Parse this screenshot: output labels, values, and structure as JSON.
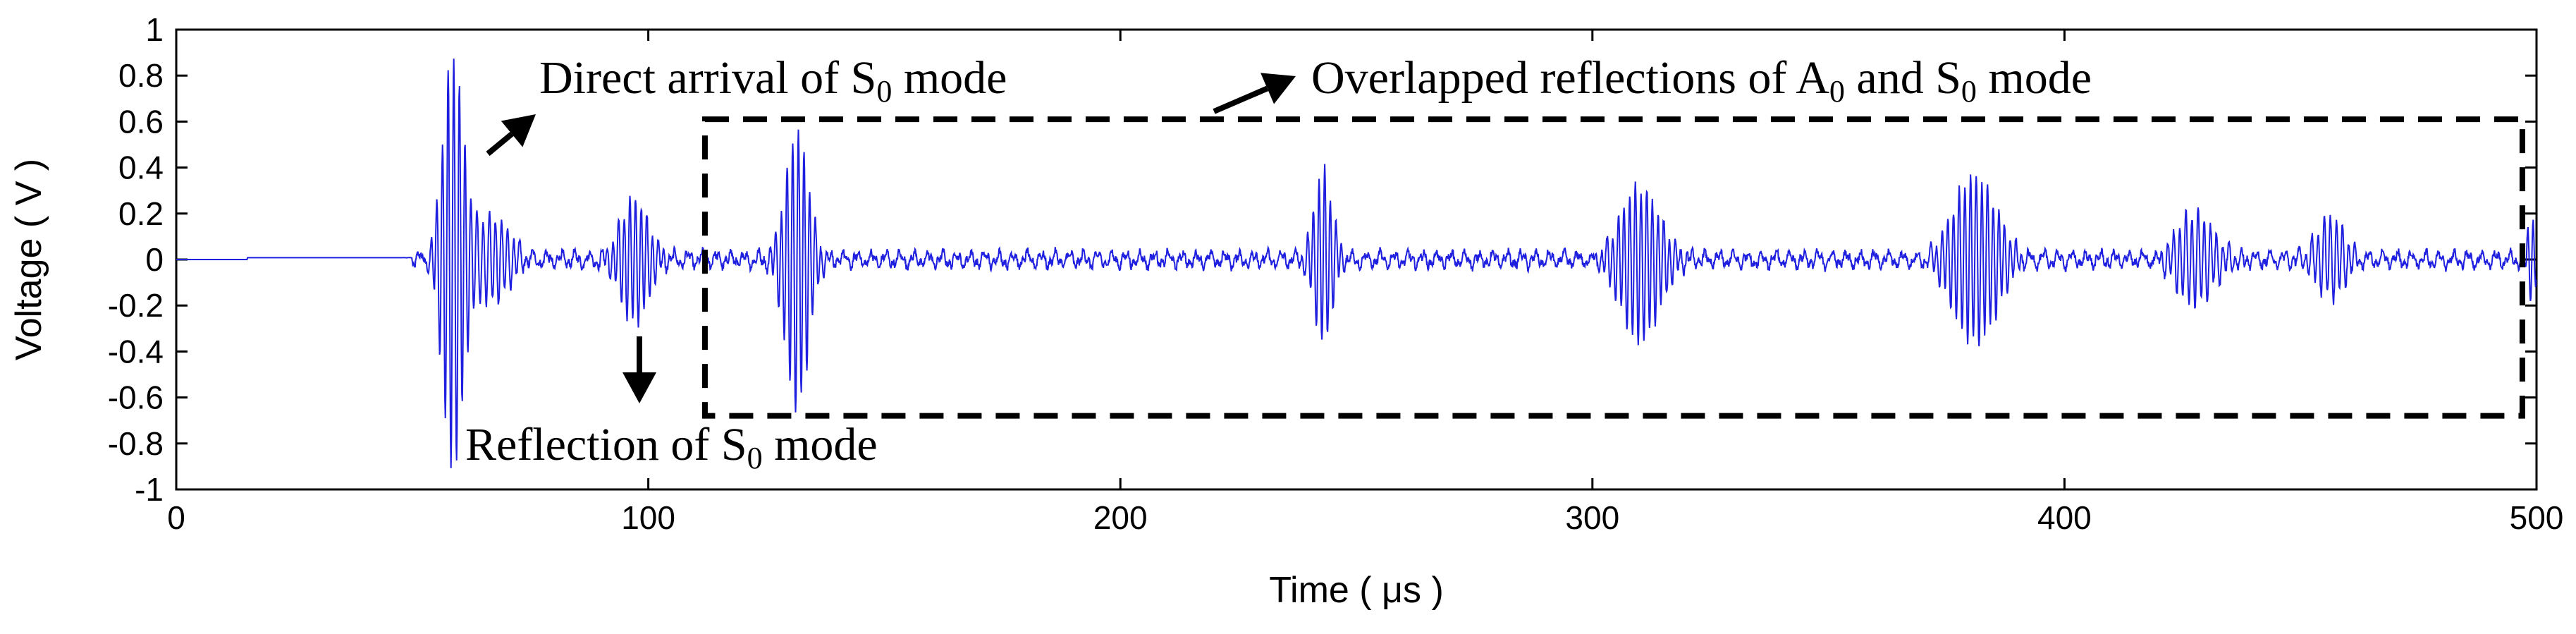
{
  "chart_data": {
    "type": "line",
    "title": "",
    "xlabel": "Time ( μs )",
    "ylabel": "Voltage ( V )",
    "xlim": [
      0,
      500
    ],
    "ylim": [
      -1,
      1
    ],
    "x_ticks": [
      0,
      100,
      200,
      300,
      400,
      500
    ],
    "y_ticks": [
      1,
      0.8,
      0.6,
      0.4,
      0.2,
      0,
      -0.2,
      -0.4,
      -0.6,
      -0.8,
      -1
    ],
    "grid": false,
    "series": [
      {
        "name": "Voltage",
        "color": "#1f1fe0",
        "description": "Guided-wave signal; values are approximate envelopes of bursts read from the plot",
        "bursts": [
          {
            "center_us": 58.5,
            "amplitude": 0.9,
            "min": -0.93,
            "half_width_us": 4.5,
            "period_us": 1.2
          },
          {
            "center_us": 66,
            "amplitude": 0.18,
            "half_width_us": 10,
            "period_us": 1.3
          },
          {
            "center_us": 97,
            "amplitude": 0.26,
            "min": -0.27,
            "half_width_us": 6,
            "period_us": 1.2
          },
          {
            "center_us": 131.5,
            "amplitude": 0.55,
            "min": -0.65,
            "half_width_us": 5,
            "period_us": 1.2
          },
          {
            "center_us": 243,
            "amplitude": 0.38,
            "min": -0.35,
            "half_width_us": 4,
            "period_us": 1.2
          },
          {
            "center_us": 310,
            "amplitude": 0.32,
            "min": -0.37,
            "half_width_us": 9,
            "period_us": 1.2
          },
          {
            "center_us": 381,
            "amplitude": 0.38,
            "min": -0.38,
            "half_width_us": 10,
            "period_us": 1.2
          },
          {
            "center_us": 428,
            "amplitude": 0.2,
            "min": -0.19,
            "half_width_us": 9,
            "period_us": 1.3
          },
          {
            "center_us": 456,
            "amplitude": 0.18,
            "min": -0.16,
            "half_width_us": 7,
            "period_us": 1.3
          },
          {
            "center_us": 499,
            "amplitude": 0.18,
            "min": -0.15,
            "half_width_us": 2,
            "period_us": 1.1
          }
        ],
        "baseline": {
          "quiet_until_us": 50,
          "noise_amplitude": 0.05
        }
      }
    ],
    "annotations": [
      {
        "id": "direct-arrival",
        "text": "Direct arrival of ",
        "sub_letter": "S",
        "sub": "0",
        "suffix": " mode",
        "points_to_us": 58
      },
      {
        "id": "reflection",
        "text": "Reflection of ",
        "sub_letter": "S",
        "sub": "0",
        "suffix": " mode",
        "points_to_us": 97
      },
      {
        "id": "overlapped",
        "text": "Overlapped reflections of ",
        "sub_letter": "A",
        "sub": "0",
        "mid": " and ",
        "sub_letter2": "S",
        "sub2": "0",
        "suffix": " mode",
        "region_us": [
          112,
          497
        ],
        "region_v": [
          -0.68,
          0.61
        ]
      }
    ]
  }
}
